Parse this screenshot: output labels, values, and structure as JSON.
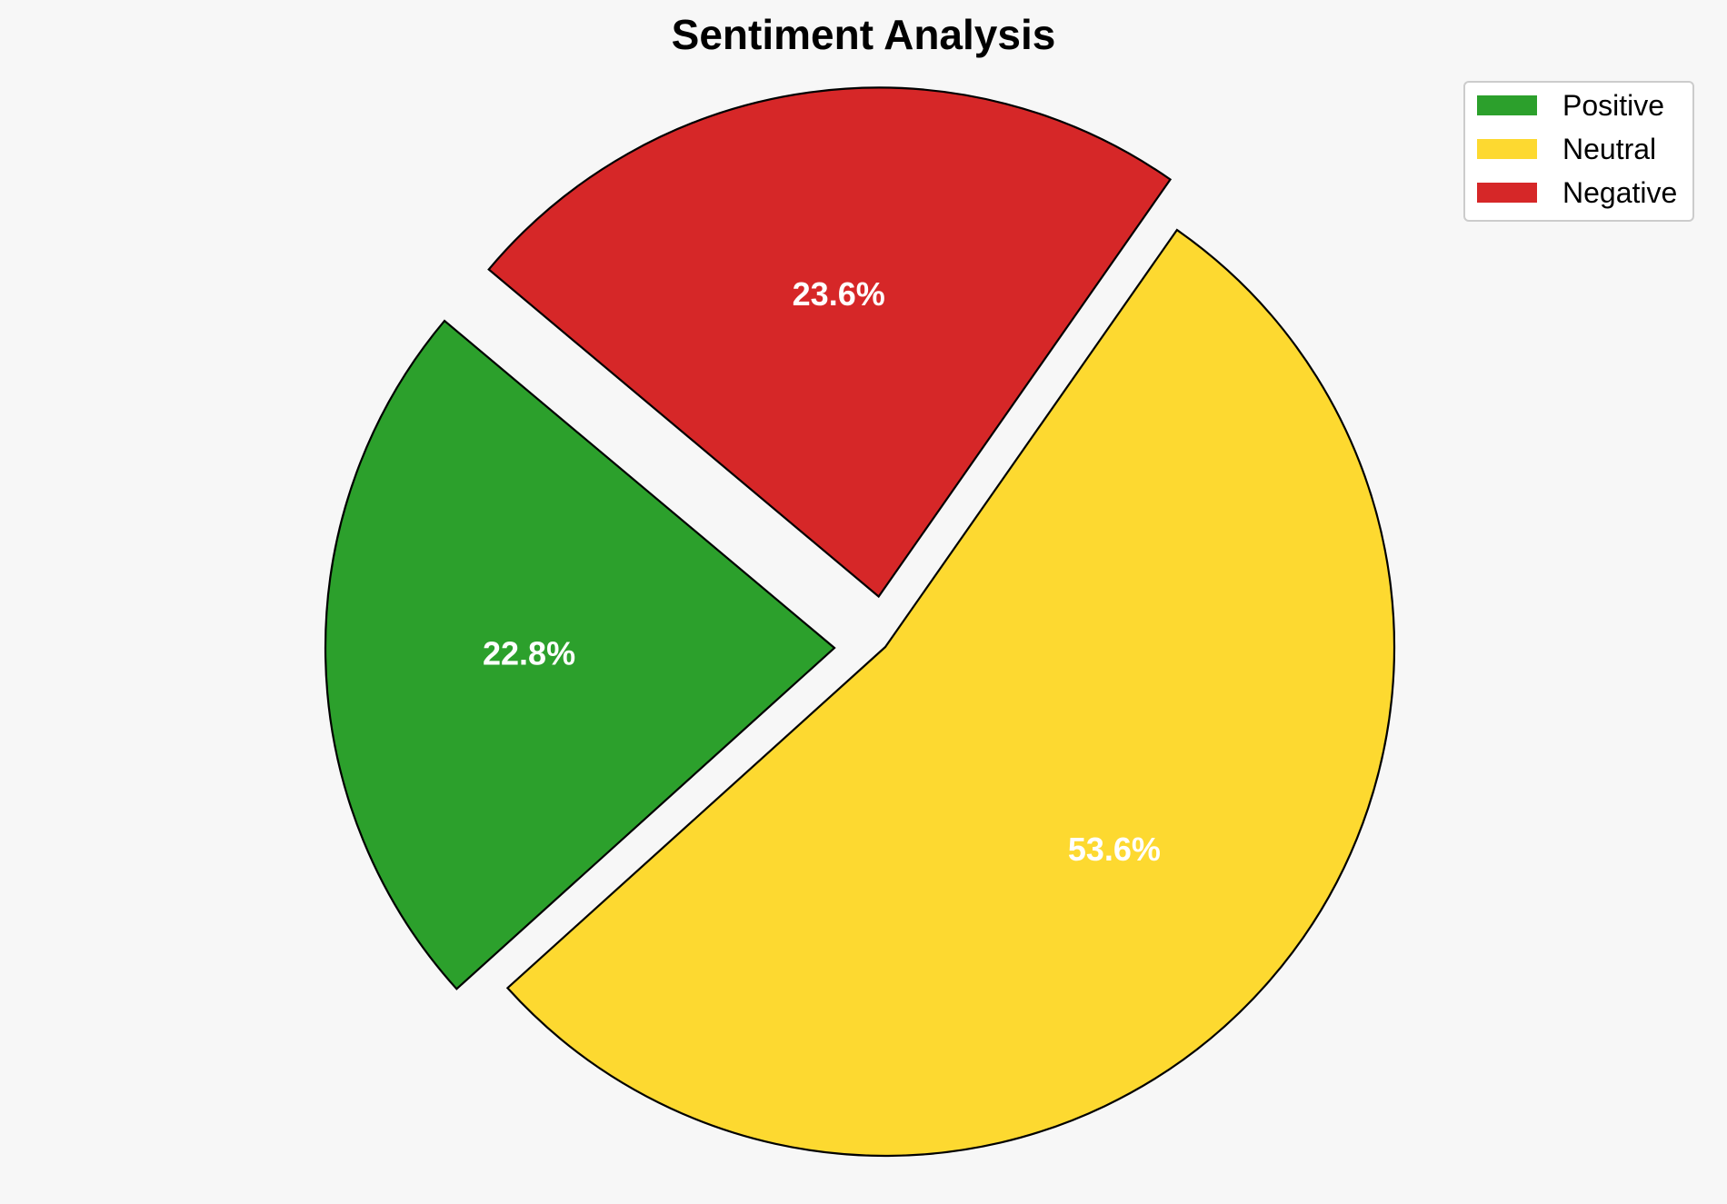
{
  "chart_data": {
    "type": "pie",
    "title": "Sentiment Analysis",
    "slices": [
      {
        "label": "Positive",
        "value": 22.8,
        "value_label": "22.8%",
        "color": "#2ca02c",
        "exploded": true
      },
      {
        "label": "Neutral",
        "value": 53.6,
        "value_label": "53.6%",
        "color": "#fdd930",
        "exploded": false
      },
      {
        "label": "Negative",
        "value": 23.6,
        "value_label": "23.6%",
        "color": "#d62728",
        "exploded": true
      }
    ],
    "start_angle_deg": 140,
    "direction": "counterclockwise",
    "legend_position": "top-right"
  }
}
